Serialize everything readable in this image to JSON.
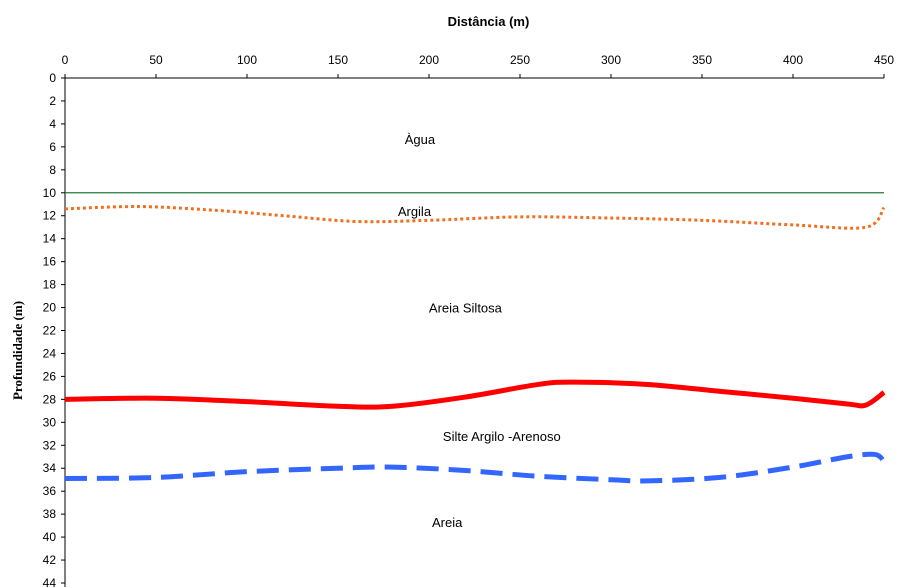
{
  "chart_data": {
    "type": "line",
    "xlabel": "Distância (m)",
    "ylabel": "Profundidade (m)",
    "xlim": [
      0,
      450
    ],
    "ylim": [
      0,
      44
    ],
    "y_inverted": true,
    "x_axis_position": "top",
    "xticks": [
      0,
      50,
      100,
      150,
      200,
      250,
      300,
      350,
      400,
      450
    ],
    "yticks": [
      0,
      2,
      4,
      6,
      8,
      10,
      12,
      14,
      16,
      18,
      20,
      22,
      24,
      26,
      28,
      30,
      32,
      34,
      36,
      38,
      40,
      42,
      44
    ],
    "series": [
      {
        "color": "#1e7b3a",
        "style": "solid-thin",
        "x": [
          0,
          450
        ],
        "y": [
          10,
          10
        ]
      },
      {
        "color": "#f07020",
        "style": "dotted",
        "x": [
          0,
          40,
          80,
          120,
          160,
          200,
          250,
          300,
          350,
          400,
          440,
          450
        ],
        "y": [
          11.4,
          11.2,
          11.5,
          12.0,
          12.5,
          12.4,
          12.1,
          12.2,
          12.4,
          12.8,
          13.0,
          11.3
        ]
      },
      {
        "color": "#ff0000",
        "style": "solid-thick",
        "x": [
          0,
          50,
          100,
          150,
          180,
          220,
          260,
          280,
          320,
          360,
          400,
          430,
          440,
          450
        ],
        "y": [
          28.0,
          27.9,
          28.2,
          28.6,
          28.6,
          27.8,
          26.7,
          26.5,
          26.7,
          27.3,
          27.9,
          28.4,
          28.5,
          27.4
        ]
      },
      {
        "color": "#3366ff",
        "style": "dashed-thick",
        "x": [
          0,
          50,
          100,
          150,
          180,
          220,
          260,
          300,
          320,
          360,
          400,
          430,
          445,
          450
        ],
        "y": [
          34.9,
          34.8,
          34.3,
          34.0,
          33.9,
          34.2,
          34.7,
          35.0,
          35.1,
          34.8,
          33.9,
          33.0,
          32.8,
          33.4
        ]
      }
    ],
    "annotations": [
      {
        "text": "Àgua",
        "x": 195,
        "y": 5.3
      },
      {
        "text": "Argila",
        "x": 192,
        "y": 11.6
      },
      {
        "text": "Areia Siltosa",
        "x": 220,
        "y": 20.0
      },
      {
        "text": "Silte Argilo -Arenoso",
        "x": 240,
        "y": 31.2
      },
      {
        "text": "Areia",
        "x": 210,
        "y": 38.7
      }
    ]
  }
}
